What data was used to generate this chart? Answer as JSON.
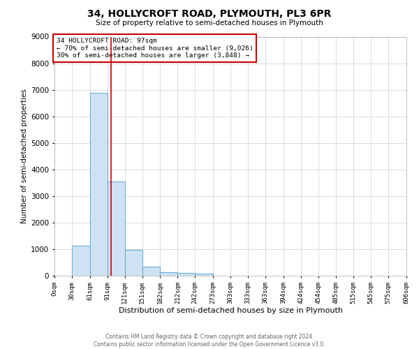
{
  "title": "34, HOLLYCROFT ROAD, PLYMOUTH, PL3 6PR",
  "subtitle": "Size of property relative to semi-detached houses in Plymouth",
  "xlabel": "Distribution of semi-detached houses by size in Plymouth",
  "ylabel": "Number of semi-detached properties",
  "bin_edges": [
    0,
    30,
    61,
    91,
    121,
    151,
    182,
    212,
    242,
    273,
    303,
    333,
    363,
    394,
    424,
    454,
    485,
    515,
    545,
    575,
    606
  ],
  "bar_heights": [
    0,
    1120,
    6880,
    3560,
    970,
    350,
    130,
    100,
    70,
    0,
    0,
    0,
    0,
    0,
    0,
    0,
    0,
    0,
    0,
    0
  ],
  "bar_facecolor": "#cfe2f3",
  "bar_edgecolor": "#6baed6",
  "property_size": 97,
  "vline_color": "#cc0000",
  "annotation_title": "34 HOLLYCROFT ROAD: 97sqm",
  "annotation_line1": "← 70% of semi-detached houses are smaller (9,026)",
  "annotation_line2": "30% of semi-detached houses are larger (3,848) →",
  "annotation_box_edgecolor": "#cc0000",
  "ylim": [
    0,
    9000
  ],
  "yticks": [
    0,
    1000,
    2000,
    3000,
    4000,
    5000,
    6000,
    7000,
    8000,
    9000
  ],
  "xtick_labels": [
    "0sqm",
    "30sqm",
    "61sqm",
    "91sqm",
    "121sqm",
    "151sqm",
    "182sqm",
    "212sqm",
    "242sqm",
    "273sqm",
    "303sqm",
    "333sqm",
    "363sqm",
    "394sqm",
    "424sqm",
    "454sqm",
    "485sqm",
    "515sqm",
    "545sqm",
    "575sqm",
    "606sqm"
  ],
  "footer_line1": "Contains HM Land Registry data © Crown copyright and database right 2024.",
  "footer_line2": "Contains public sector information licensed under the Open Government Licence v3.0.",
  "bg_color": "#ffffff",
  "grid_color": "#c8d0d8"
}
